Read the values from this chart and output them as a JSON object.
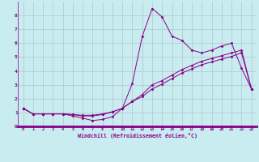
{
  "xlabel": "Windchill (Refroidissement éolien,°C)",
  "xlim": [
    -0.5,
    23.5
  ],
  "ylim": [
    0,
    9
  ],
  "xticks": [
    0,
    1,
    2,
    3,
    4,
    5,
    6,
    7,
    8,
    9,
    10,
    11,
    12,
    13,
    14,
    15,
    16,
    17,
    18,
    19,
    20,
    21,
    22,
    23
  ],
  "yticks": [
    0,
    1,
    2,
    3,
    4,
    5,
    6,
    7,
    8
  ],
  "bg_color": "#c8ecf0",
  "line_color": "#880088",
  "grid_color": "#b0c8cc",
  "line1_x": [
    0,
    1,
    2,
    3,
    4,
    5,
    6,
    7,
    8,
    9,
    10,
    11,
    12,
    13,
    14,
    15,
    16,
    17,
    18,
    19,
    20,
    21,
    22,
    23
  ],
  "line1_y": [
    1.3,
    0.9,
    0.9,
    0.9,
    0.9,
    0.75,
    0.6,
    0.42,
    0.5,
    0.7,
    1.3,
    3.1,
    6.5,
    8.5,
    7.9,
    6.5,
    6.2,
    5.5,
    5.3,
    5.5,
    5.8,
    6.0,
    4.2,
    2.7
  ],
  "line2_x": [
    0,
    1,
    2,
    3,
    4,
    5,
    6,
    7,
    8,
    9,
    10,
    11,
    12,
    13,
    14,
    15,
    16,
    17,
    18,
    19,
    20,
    21,
    22,
    23
  ],
  "line2_y": [
    1.3,
    0.9,
    0.9,
    0.9,
    0.9,
    0.85,
    0.8,
    0.8,
    0.9,
    1.05,
    1.3,
    1.8,
    2.3,
    3.0,
    3.3,
    3.7,
    4.1,
    4.4,
    4.7,
    4.9,
    5.1,
    5.3,
    5.5,
    2.7
  ],
  "line3_x": [
    0,
    1,
    2,
    3,
    4,
    5,
    6,
    7,
    8,
    9,
    10,
    11,
    12,
    13,
    14,
    15,
    16,
    17,
    18,
    19,
    20,
    21,
    22,
    23
  ],
  "line3_y": [
    1.3,
    0.9,
    0.9,
    0.9,
    0.9,
    0.85,
    0.75,
    0.75,
    0.85,
    1.05,
    1.3,
    1.8,
    2.15,
    2.7,
    3.05,
    3.45,
    3.85,
    4.15,
    4.45,
    4.65,
    4.85,
    5.05,
    5.3,
    2.7
  ]
}
